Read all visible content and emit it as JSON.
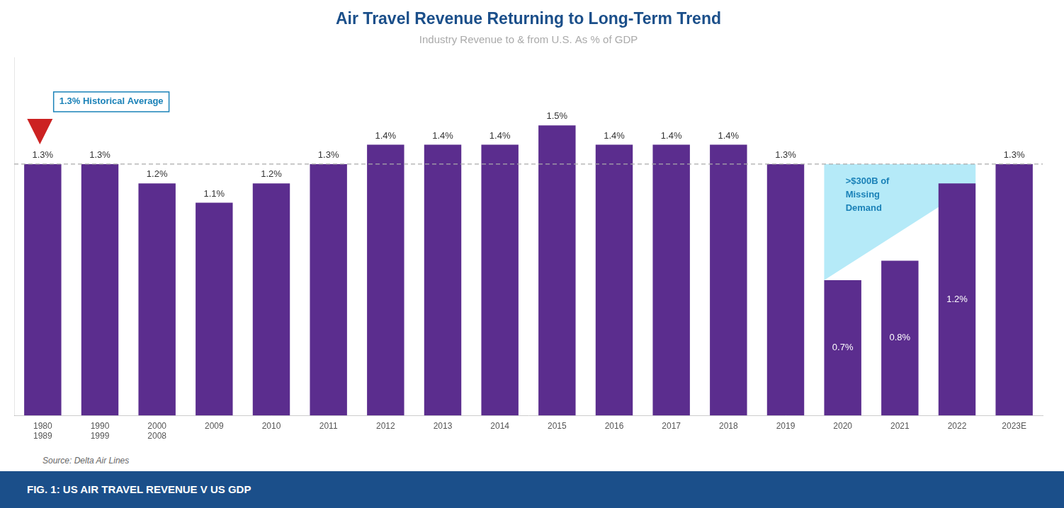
{
  "chart_data": {
    "type": "bar",
    "title": "Air Travel Revenue Returning to Long-Term Trend",
    "subtitle": "Industry Revenue to & from U.S. As % of GDP",
    "categories": [
      "1980\n1989",
      "1990\n1999",
      "2000\n2008",
      "2009",
      "2010",
      "2011",
      "2012",
      "2013",
      "2014",
      "2015",
      "2016",
      "2017",
      "2018",
      "2019",
      "2020",
      "2021",
      "2022",
      "2023E"
    ],
    "values": [
      1.3,
      1.3,
      1.2,
      1.1,
      1.2,
      1.3,
      1.4,
      1.4,
      1.4,
      1.5,
      1.4,
      1.4,
      1.4,
      1.3,
      0.7,
      0.8,
      1.2,
      1.3
    ],
    "value_labels": [
      "1.3%",
      "1.3%",
      "1.2%",
      "1.1%",
      "1.2%",
      "1.3%",
      "1.4%",
      "1.4%",
      "1.4%",
      "1.5%",
      "1.4%",
      "1.4%",
      "1.4%",
      "1.3%",
      "0.7%",
      "0.8%",
      "1.2%",
      "1.3%"
    ],
    "data_labels": true,
    "color": "#5B2D8E",
    "ylim": [
      0,
      1.85
    ],
    "grid": false,
    "tick_labels": "x",
    "reference_line": {
      "value": 1.3,
      "label": "1.3% Historical Average"
    },
    "shaded_area": {
      "from": "2020",
      "to": "2022",
      "label": ">$300B of\nMissing\nDemand"
    },
    "source": "Source: Delta Air Lines",
    "footer": "FIG. 1: US AIR TRAVEL REVENUE V US GDP"
  }
}
